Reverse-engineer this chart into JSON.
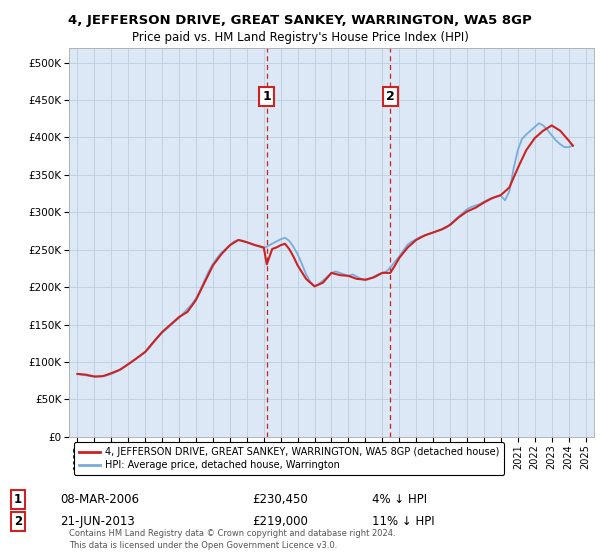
{
  "title": "4, JEFFERSON DRIVE, GREAT SANKEY, WARRINGTON, WA5 8GP",
  "subtitle": "Price paid vs. HM Land Registry's House Price Index (HPI)",
  "ylabel_ticks": [
    "£0",
    "£50K",
    "£100K",
    "£150K",
    "£200K",
    "£250K",
    "£300K",
    "£350K",
    "£400K",
    "£450K",
    "£500K"
  ],
  "ytick_values": [
    0,
    50000,
    100000,
    150000,
    200000,
    250000,
    300000,
    350000,
    400000,
    450000,
    500000
  ],
  "ylim": [
    0,
    520000
  ],
  "xlim_start": 1994.5,
  "xlim_end": 2025.5,
  "sale1_date": 2006.18,
  "sale1_label": "1",
  "sale2_date": 2013.47,
  "sale2_label": "2",
  "bg_color": "#dce8f5",
  "grid_color": "#bbcfdf",
  "hpi_line_color": "#7aacdb",
  "price_line_color": "#cc2222",
  "vline_color": "#cc2222",
  "marker_box_color": "#cc2222",
  "legend_label_price": "4, JEFFERSON DRIVE, GREAT SANKEY, WARRINGTON, WA5 8GP (detached house)",
  "legend_label_hpi": "HPI: Average price, detached house, Warrington",
  "annotation1_date": "08-MAR-2006",
  "annotation1_price": "£230,450",
  "annotation1_pct": "4% ↓ HPI",
  "annotation2_date": "21-JUN-2013",
  "annotation2_price": "£219,000",
  "annotation2_pct": "11% ↓ HPI",
  "footer": "Contains HM Land Registry data © Crown copyright and database right 2024.\nThis data is licensed under the Open Government Licence v3.0.",
  "hpi_years": [
    1995.0,
    1995.25,
    1995.5,
    1995.75,
    1996.0,
    1996.25,
    1996.5,
    1996.75,
    1997.0,
    1997.25,
    1997.5,
    1997.75,
    1998.0,
    1998.25,
    1998.5,
    1998.75,
    1999.0,
    1999.25,
    1999.5,
    1999.75,
    2000.0,
    2000.25,
    2000.5,
    2000.75,
    2001.0,
    2001.25,
    2001.5,
    2001.75,
    2002.0,
    2002.25,
    2002.5,
    2002.75,
    2003.0,
    2003.25,
    2003.5,
    2003.75,
    2004.0,
    2004.25,
    2004.5,
    2004.75,
    2005.0,
    2005.25,
    2005.5,
    2005.75,
    2006.0,
    2006.25,
    2006.5,
    2006.75,
    2007.0,
    2007.25,
    2007.5,
    2007.75,
    2008.0,
    2008.25,
    2008.5,
    2008.75,
    2009.0,
    2009.25,
    2009.5,
    2009.75,
    2010.0,
    2010.25,
    2010.5,
    2010.75,
    2011.0,
    2011.25,
    2011.5,
    2011.75,
    2012.0,
    2012.25,
    2012.5,
    2012.75,
    2013.0,
    2013.25,
    2013.5,
    2013.75,
    2014.0,
    2014.25,
    2014.5,
    2014.75,
    2015.0,
    2015.25,
    2015.5,
    2015.75,
    2016.0,
    2016.25,
    2016.5,
    2016.75,
    2017.0,
    2017.25,
    2017.5,
    2017.75,
    2018.0,
    2018.25,
    2018.5,
    2018.75,
    2019.0,
    2019.25,
    2019.5,
    2019.75,
    2020.0,
    2020.25,
    2020.5,
    2020.75,
    2021.0,
    2021.25,
    2021.5,
    2021.75,
    2022.0,
    2022.25,
    2022.5,
    2022.75,
    2023.0,
    2023.25,
    2023.5,
    2023.75,
    2024.0,
    2024.25
  ],
  "hpi_values": [
    84000,
    83000,
    82000,
    81000,
    80500,
    80500,
    81000,
    82000,
    84000,
    86500,
    89500,
    93000,
    97000,
    101000,
    105000,
    109000,
    113000,
    119000,
    126000,
    133000,
    139000,
    144000,
    149000,
    154000,
    159000,
    165000,
    171000,
    177000,
    185000,
    196000,
    209000,
    221000,
    231000,
    239000,
    246000,
    251000,
    256000,
    261000,
    263000,
    262000,
    260000,
    258000,
    256000,
    254000,
    252000,
    255000,
    258000,
    261000,
    264000,
    266000,
    262000,
    254000,
    244000,
    231000,
    217000,
    207000,
    201000,
    204000,
    209000,
    214000,
    219000,
    221000,
    219000,
    217000,
    215000,
    217000,
    214000,
    211000,
    209000,
    211000,
    214000,
    217000,
    219000,
    221000,
    227000,
    234000,
    241000,
    249000,
    257000,
    261000,
    264000,
    267000,
    269000,
    271000,
    273000,
    275000,
    277000,
    279000,
    284000,
    289000,
    294000,
    299000,
    304000,
    307000,
    309000,
    311000,
    314000,
    317000,
    319000,
    321000,
    322000,
    316000,
    328000,
    358000,
    383000,
    398000,
    404000,
    409000,
    414000,
    419000,
    416000,
    410000,
    403000,
    396000,
    391000,
    387000,
    387000,
    389000
  ],
  "price_years": [
    1995.0,
    1995.5,
    1996.0,
    1996.5,
    1997.0,
    1997.5,
    1998.0,
    1998.5,
    1999.0,
    1999.5,
    2000.0,
    2000.5,
    2001.0,
    2001.5,
    2002.0,
    2002.5,
    2003.0,
    2003.5,
    2004.0,
    2004.5,
    2005.0,
    2005.5,
    2006.0,
    2006.18,
    2006.5,
    2006.75,
    2007.0,
    2007.25,
    2007.5,
    2007.75,
    2008.0,
    2008.5,
    2009.0,
    2009.5,
    2010.0,
    2010.5,
    2011.0,
    2011.5,
    2012.0,
    2012.5,
    2013.0,
    2013.47,
    2013.75,
    2014.0,
    2014.5,
    2015.0,
    2015.5,
    2016.0,
    2016.5,
    2017.0,
    2017.5,
    2018.0,
    2018.5,
    2019.0,
    2019.5,
    2020.0,
    2020.5,
    2021.0,
    2021.5,
    2022.0,
    2022.5,
    2023.0,
    2023.5,
    2024.0,
    2024.25
  ],
  "price_values": [
    84000,
    83000,
    80500,
    81000,
    85000,
    89500,
    97000,
    105000,
    113500,
    127000,
    140000,
    150000,
    160000,
    167000,
    183000,
    206000,
    229000,
    244000,
    256000,
    263000,
    260000,
    256000,
    253000,
    230450,
    251000,
    253000,
    256000,
    258000,
    251000,
    241000,
    229000,
    211000,
    201000,
    206000,
    219000,
    216000,
    215000,
    211000,
    210000,
    213000,
    219000,
    219000,
    229000,
    239000,
    253000,
    263000,
    269000,
    273000,
    277000,
    283000,
    293000,
    301000,
    306000,
    313000,
    319000,
    323000,
    333000,
    359000,
    383000,
    399000,
    409000,
    416000,
    409000,
    396000,
    389000
  ]
}
